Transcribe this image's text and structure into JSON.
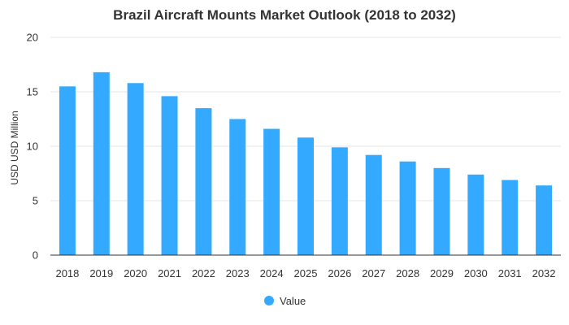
{
  "chart_data": {
    "type": "bar",
    "title": "Brazil Aircraft Mounts Market Outlook (2018 to 2032)",
    "xlabel": "",
    "ylabel": "USD USD Million",
    "categories": [
      "2018",
      "2019",
      "2020",
      "2021",
      "2022",
      "2023",
      "2024",
      "2025",
      "2026",
      "2027",
      "2028",
      "2029",
      "2030",
      "2031",
      "2032"
    ],
    "series": [
      {
        "name": "Value",
        "color": "#33aaff",
        "values": [
          15.5,
          16.8,
          15.8,
          14.6,
          13.5,
          12.5,
          11.6,
          10.8,
          9.9,
          9.2,
          8.6,
          8.0,
          7.4,
          6.9,
          6.4
        ]
      }
    ],
    "ylim": [
      0,
      20
    ],
    "yticks": [
      0,
      5,
      10,
      15,
      20
    ],
    "grid": true,
    "legend_position": "bottom"
  }
}
